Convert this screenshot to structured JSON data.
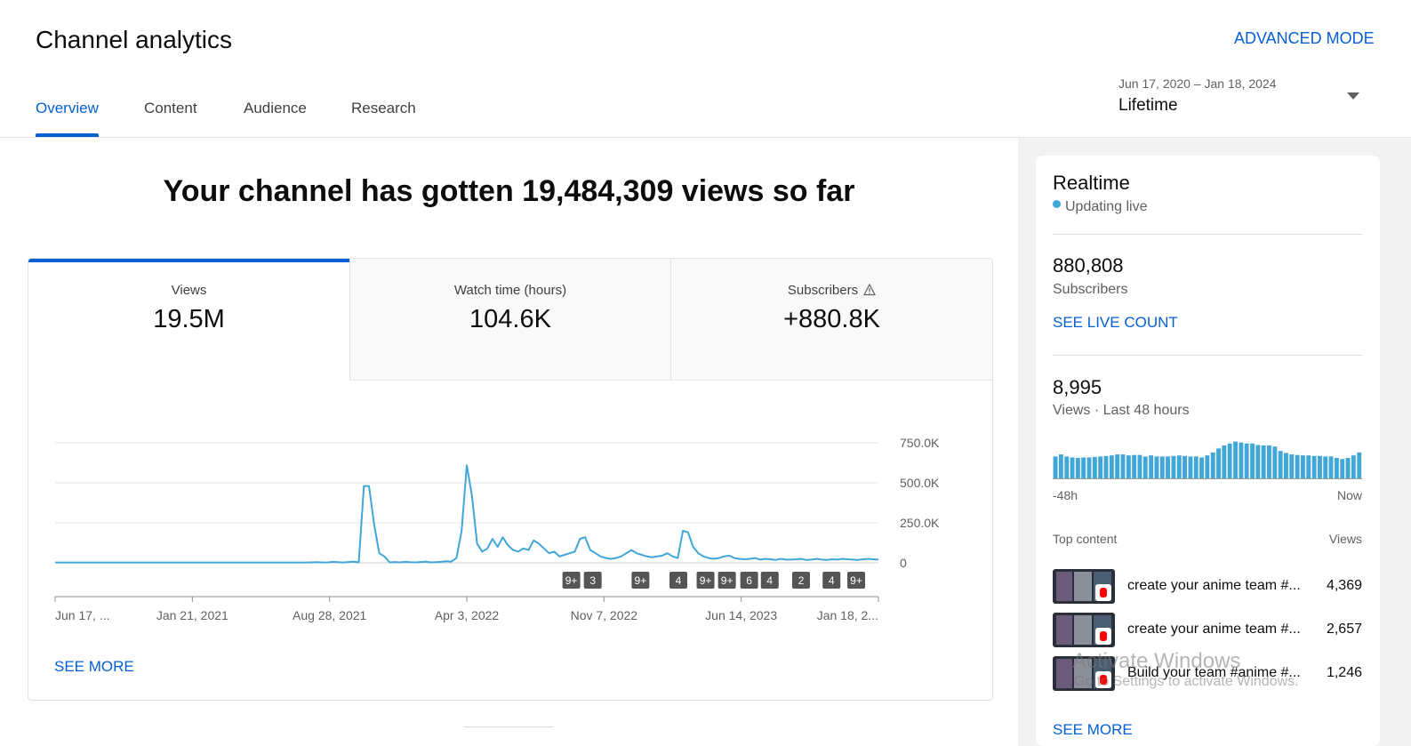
{
  "header": {
    "title": "Channel analytics",
    "advanced_mode": "ADVANCED MODE",
    "tabs": [
      {
        "label": "Overview",
        "active": true
      },
      {
        "label": "Content",
        "active": false
      },
      {
        "label": "Audience",
        "active": false
      },
      {
        "label": "Research",
        "active": false
      }
    ],
    "date_range": {
      "range": "Jun 17, 2020 – Jan 18, 2024",
      "preset": "Lifetime"
    }
  },
  "overview": {
    "headline": "Your channel has gotten 19,484,309 views so far",
    "metrics": [
      {
        "label": "Views",
        "value": "19.5M"
      },
      {
        "label": "Watch time (hours)",
        "value": "104.6K"
      },
      {
        "label": "Subscribers",
        "value": "+880.8K"
      }
    ],
    "see_more": "SEE MORE"
  },
  "chart_data": {
    "type": "line",
    "series": [
      {
        "values": [
          2,
          2,
          2,
          2,
          2,
          2,
          2,
          2,
          2,
          2,
          2,
          2,
          2,
          2,
          2,
          2,
          2,
          2,
          2,
          2,
          2,
          2,
          2,
          2,
          2,
          2,
          2,
          2,
          2,
          2,
          2,
          2,
          2,
          2,
          2,
          2,
          2,
          2,
          2,
          2,
          2,
          2,
          2,
          2,
          2,
          2,
          2,
          2,
          2,
          2,
          3,
          4,
          2,
          3,
          6,
          4,
          2,
          5,
          8,
          3,
          480,
          480,
          240,
          60,
          40,
          3,
          5,
          3,
          6,
          4,
          3,
          5,
          8,
          3,
          4,
          6,
          10,
          8,
          30,
          200,
          610,
          420,
          120,
          70,
          90,
          150,
          100,
          160,
          110,
          80,
          70,
          90,
          80,
          140,
          120,
          90,
          60,
          70,
          40,
          50,
          60,
          70,
          150,
          160,
          80,
          60,
          40,
          30,
          25,
          30,
          40,
          60,
          80,
          60,
          50,
          40,
          35,
          40,
          45,
          60,
          40,
          30,
          200,
          190,
          100,
          60,
          40,
          30,
          25,
          30,
          40,
          45,
          30,
          25,
          22,
          25,
          30,
          20,
          25,
          22,
          18,
          25,
          20,
          20,
          22,
          25,
          18,
          20,
          25,
          20,
          18,
          22,
          20,
          25,
          22,
          20,
          18,
          22,
          25,
          22,
          20
        ]
      }
    ],
    "x_tick_labels": [
      "Jun 17, ...",
      "Jan 21, 2021",
      "Aug 28, 2021",
      "Apr 3, 2022",
      "Nov 7, 2022",
      "Jun 14, 2023",
      "Jan 18, 2..."
    ],
    "y_tick_labels": [
      "750.0K",
      "500.0K",
      "250.0K",
      "0"
    ],
    "y_ticks": [
      750,
      500,
      250,
      0
    ],
    "ylim": [
      0,
      750
    ],
    "y_unit": "K",
    "grid": true,
    "color": "#41a6d8",
    "upload_markers": [
      {
        "label": "9+",
        "at": 0.627
      },
      {
        "label": "3",
        "at": 0.653
      },
      {
        "label": "9+",
        "at": 0.711
      },
      {
        "label": "4",
        "at": 0.757
      },
      {
        "label": "9+",
        "at": 0.79
      },
      {
        "label": "9+",
        "at": 0.816
      },
      {
        "label": "6",
        "at": 0.843
      },
      {
        "label": "4",
        "at": 0.868
      },
      {
        "label": "2",
        "at": 0.906
      },
      {
        "label": "4",
        "at": 0.943
      },
      {
        "label": "9+",
        "at": 0.973
      }
    ]
  },
  "realtime": {
    "title": "Realtime",
    "status": "Updating live",
    "subscribers": {
      "value": "880,808",
      "label": "Subscribers"
    },
    "see_live_count": "SEE LIVE COUNT",
    "views": {
      "value": "8,995",
      "label": "Views · Last 48 hours"
    },
    "mini_chart": {
      "values": [
        44,
        48,
        44,
        42,
        41,
        42,
        42,
        43,
        44,
        45,
        46,
        48,
        48,
        46,
        47,
        47,
        44,
        46,
        44,
        44,
        44,
        45,
        46,
        45,
        44,
        44,
        42,
        46,
        52,
        60,
        66,
        70,
        74,
        72,
        70,
        70,
        67,
        66,
        66,
        64,
        55,
        51,
        48,
        47,
        46,
        46,
        45,
        45,
        44,
        44,
        41,
        39,
        41,
        46,
        52
      ],
      "color": "#41a6d8",
      "left_label": "-48h",
      "right_label": "Now"
    },
    "top_content": {
      "header_left": "Top content",
      "header_right": "Views",
      "items": [
        {
          "title": "create your anime team #...",
          "views": "4,369"
        },
        {
          "title": "create your anime team #...",
          "views": "2,657"
        },
        {
          "title": "Build your team #anime #...",
          "views": "1,246"
        }
      ]
    },
    "see_more": "SEE MORE"
  },
  "watermark": {
    "line1": "Activate Windows",
    "line2": "Go to Settings to activate Windows."
  }
}
